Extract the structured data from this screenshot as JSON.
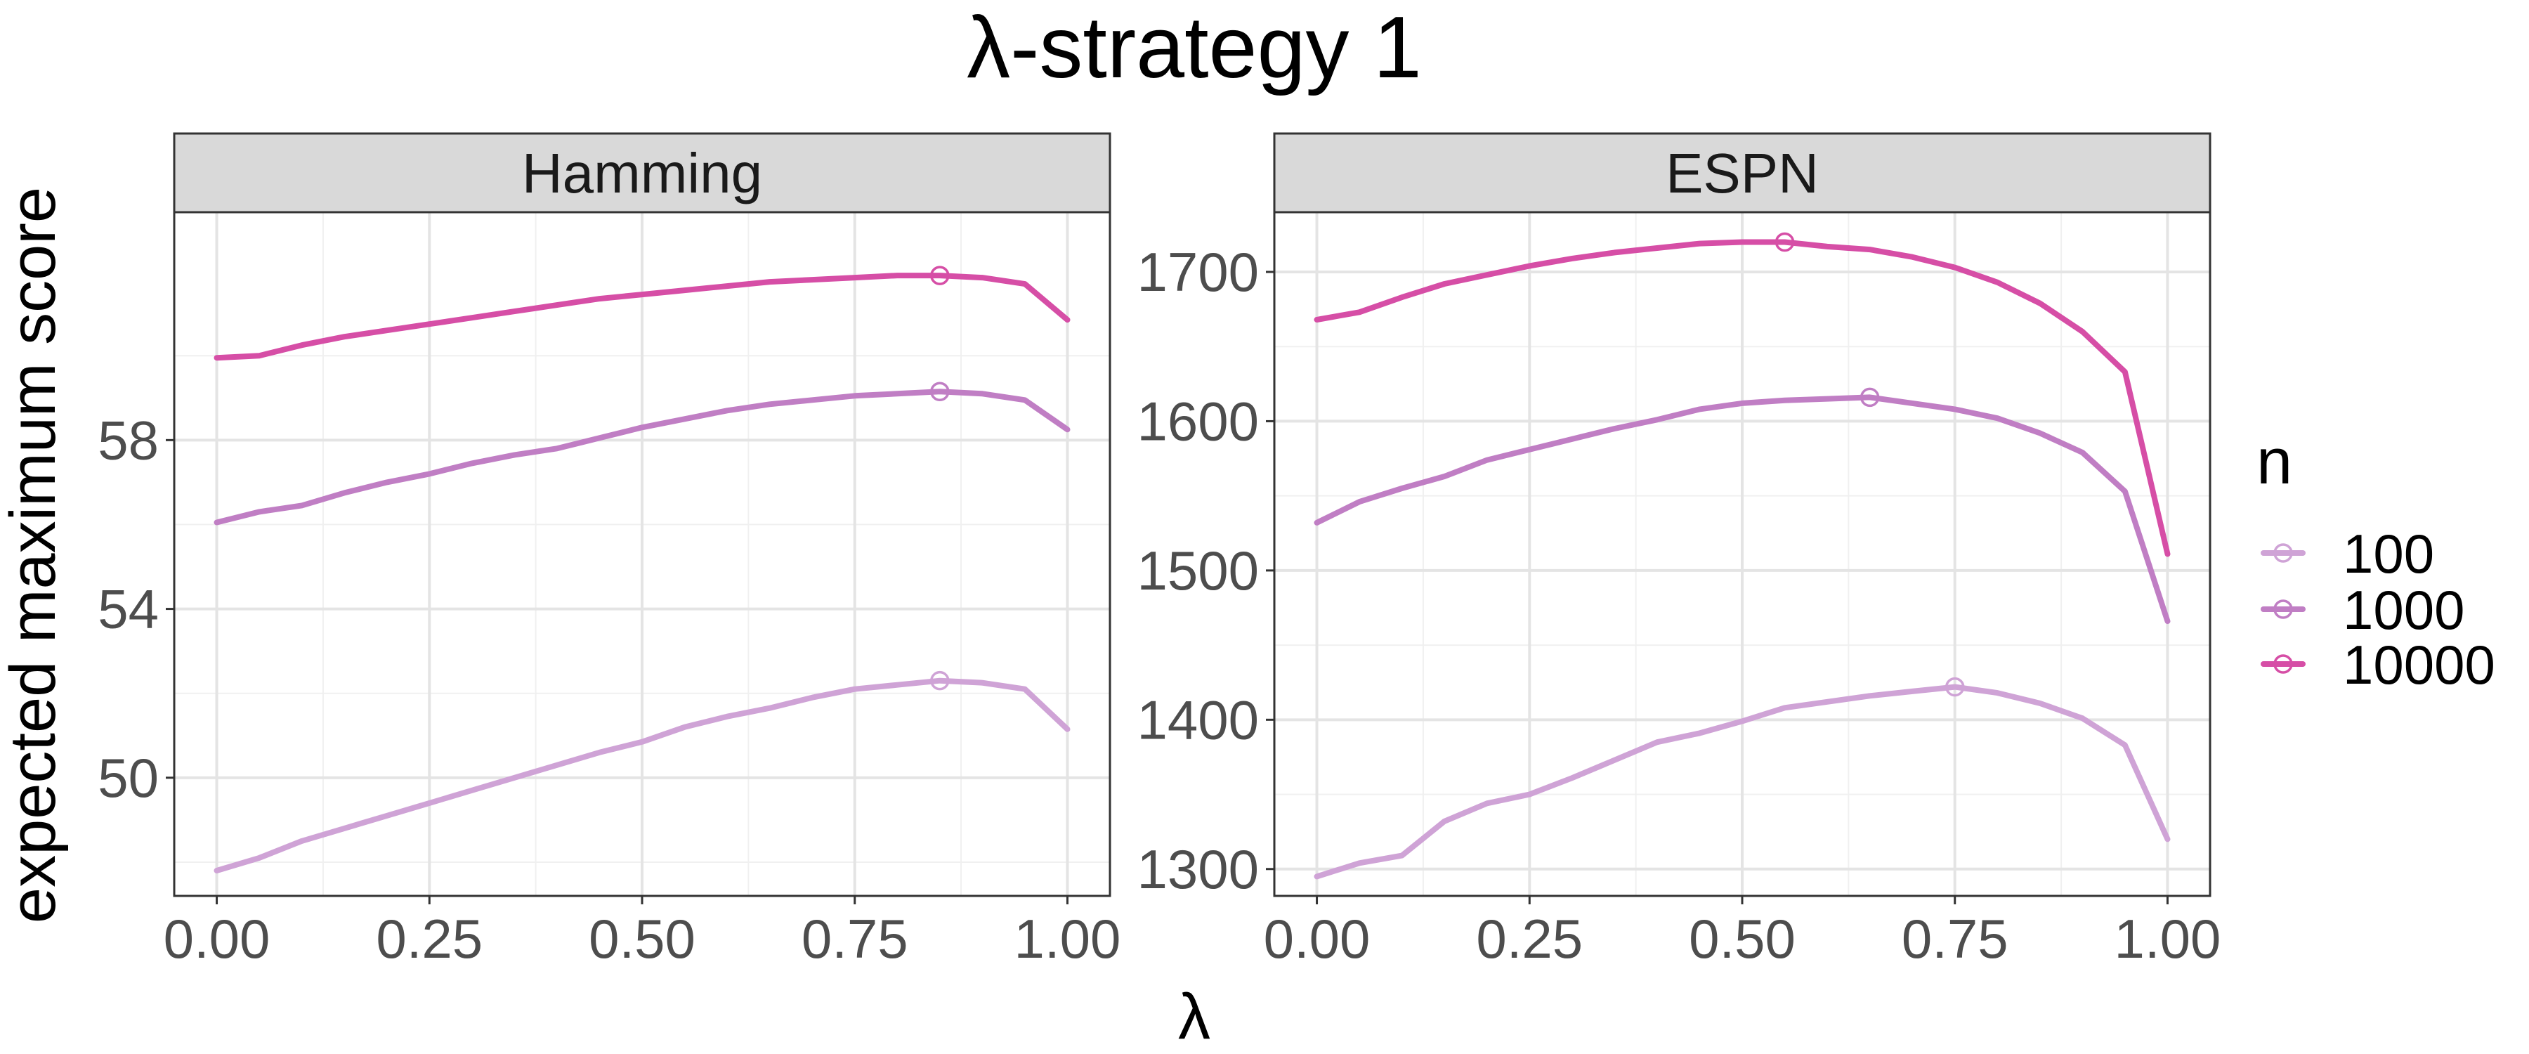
{
  "chart_data": {
    "type": "line",
    "title": "λ-strategy 1",
    "xlabel": "λ",
    "ylabel": "expected maximum score",
    "legend": {
      "title": "n",
      "position": "right",
      "entries": [
        "100",
        "1000",
        "10000"
      ]
    },
    "colors": {
      "100": "#cfa3d6",
      "1000": "#c07ec4",
      "10000": "#d64ea6"
    },
    "grid": true,
    "x_ticks": [
      "0.00",
      "0.25",
      "0.50",
      "0.75",
      "1.00"
    ],
    "panels": [
      {
        "strip": "Hamming",
        "xlim": [
          -0.05,
          1.05
        ],
        "ylim": [
          47.2,
          63.4
        ],
        "y_ticks": [
          50,
          54,
          58
        ],
        "y_tick_labels": [
          "50",
          "54",
          "58"
        ],
        "series": [
          {
            "n": "100",
            "x": [
              0,
              0.05,
              0.1,
              0.15,
              0.2,
              0.25,
              0.3,
              0.35,
              0.4,
              0.45,
              0.5,
              0.55,
              0.6,
              0.65,
              0.7,
              0.75,
              0.8,
              0.85,
              0.9,
              0.95,
              1.0
            ],
            "y": [
              47.8,
              48.1,
              48.5,
              48.8,
              49.1,
              49.4,
              49.7,
              50.0,
              50.3,
              50.6,
              50.85,
              51.2,
              51.45,
              51.65,
              51.9,
              52.1,
              52.2,
              52.3,
              52.25,
              52.1,
              51.15
            ],
            "optimum": [
              0.85,
              52.3
            ]
          },
          {
            "n": "1000",
            "x": [
              0,
              0.05,
              0.1,
              0.15,
              0.2,
              0.25,
              0.3,
              0.35,
              0.4,
              0.45,
              0.5,
              0.55,
              0.6,
              0.65,
              0.7,
              0.75,
              0.8,
              0.85,
              0.9,
              0.95,
              1.0
            ],
            "y": [
              56.05,
              56.3,
              56.45,
              56.75,
              57.0,
              57.2,
              57.45,
              57.65,
              57.8,
              58.05,
              58.3,
              58.5,
              58.7,
              58.85,
              58.95,
              59.05,
              59.1,
              59.15,
              59.1,
              58.95,
              58.25
            ],
            "optimum": [
              0.85,
              59.15
            ]
          },
          {
            "n": "10000",
            "x": [
              0,
              0.05,
              0.1,
              0.15,
              0.2,
              0.25,
              0.3,
              0.35,
              0.4,
              0.45,
              0.5,
              0.55,
              0.6,
              0.65,
              0.7,
              0.75,
              0.8,
              0.85,
              0.9,
              0.95,
              1.0
            ],
            "y": [
              59.95,
              60.0,
              60.25,
              60.45,
              60.6,
              60.75,
              60.9,
              61.05,
              61.2,
              61.35,
              61.45,
              61.55,
              61.65,
              61.75,
              61.8,
              61.85,
              61.9,
              61.9,
              61.85,
              61.7,
              60.85
            ],
            "optimum": [
              0.85,
              61.9
            ]
          }
        ]
      },
      {
        "strip": "ESPN",
        "xlim": [
          -0.05,
          1.05
        ],
        "ylim": [
          1282,
          1740
        ],
        "y_ticks": [
          1300,
          1400,
          1500,
          1600,
          1700
        ],
        "y_tick_labels": [
          "1300",
          "1400",
          "1500",
          "1600",
          "1700"
        ],
        "series": [
          {
            "n": "100",
            "x": [
              0,
              0.05,
              0.1,
              0.15,
              0.2,
              0.25,
              0.3,
              0.35,
              0.4,
              0.45,
              0.5,
              0.55,
              0.6,
              0.65,
              0.7,
              0.75,
              0.8,
              0.85,
              0.9,
              0.95,
              1.0
            ],
            "y": [
              1295,
              1304,
              1309,
              1332,
              1344,
              1350,
              1361,
              1373,
              1385,
              1391,
              1399,
              1408,
              1412,
              1416,
              1419,
              1422,
              1418,
              1411,
              1401,
              1383,
              1320
            ],
            "optimum": [
              0.75,
              1422
            ]
          },
          {
            "n": "1000",
            "x": [
              0,
              0.05,
              0.1,
              0.15,
              0.2,
              0.25,
              0.3,
              0.35,
              0.4,
              0.45,
              0.5,
              0.55,
              0.6,
              0.65,
              0.7,
              0.75,
              0.8,
              0.85,
              0.9,
              0.95,
              1.0
            ],
            "y": [
              1532,
              1546,
              1555,
              1563,
              1574,
              1581,
              1588,
              1595,
              1601,
              1608,
              1612,
              1614,
              1615,
              1616,
              1612,
              1608,
              1602,
              1592,
              1579,
              1553,
              1466
            ],
            "optimum": [
              0.65,
              1616
            ]
          },
          {
            "n": "10000",
            "x": [
              0,
              0.05,
              0.1,
              0.15,
              0.2,
              0.25,
              0.3,
              0.35,
              0.4,
              0.45,
              0.5,
              0.55,
              0.6,
              0.65,
              0.7,
              0.75,
              0.8,
              0.85,
              0.9,
              0.95,
              1.0
            ],
            "y": [
              1668,
              1673,
              1683,
              1692,
              1698,
              1704,
              1709,
              1713,
              1716,
              1719,
              1720,
              1720,
              1717,
              1715,
              1710,
              1703,
              1693,
              1679,
              1660,
              1633,
              1511
            ],
            "optimum": [
              0.55,
              1720
            ]
          }
        ]
      }
    ]
  }
}
